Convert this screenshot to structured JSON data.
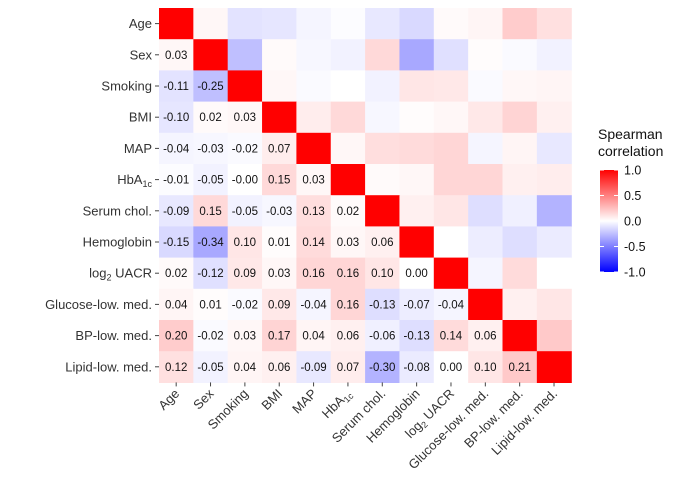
{
  "chart_data": {
    "type": "heatmap",
    "title": "",
    "xlabel": "",
    "ylabel": "",
    "variables": [
      "Age",
      "Sex",
      "Smoking",
      "BMI",
      "MAP",
      "HbA1c",
      "Serum chol.",
      "Hemoglobin",
      "log2 UACR",
      "Glucose-low. med.",
      "BP-low. med.",
      "Lipid-low. med."
    ],
    "row_labels": [
      {
        "main": "Age",
        "sub": "",
        "pre": ""
      },
      {
        "main": "Sex",
        "sub": "",
        "pre": ""
      },
      {
        "main": "Smoking",
        "sub": "",
        "pre": ""
      },
      {
        "main": "BMI",
        "sub": "",
        "pre": ""
      },
      {
        "main": "MAP",
        "sub": "",
        "pre": ""
      },
      {
        "main": "HbA",
        "sub": "1c",
        "pre": ""
      },
      {
        "main": "Serum chol.",
        "sub": "",
        "pre": ""
      },
      {
        "main": "Hemoglobin",
        "sub": "",
        "pre": ""
      },
      {
        "main": "UACR",
        "sub": "2",
        "pre": "log"
      },
      {
        "main": "Glucose-low. med.",
        "sub": "",
        "pre": ""
      },
      {
        "main": "BP-low. med.",
        "sub": "",
        "pre": ""
      },
      {
        "main": "Lipid-low. med.",
        "sub": "",
        "pre": ""
      }
    ],
    "lower_triangle_values": [
      [],
      [
        0.03
      ],
      [
        -0.11,
        -0.25
      ],
      [
        -0.1,
        0.02,
        0.03
      ],
      [
        -0.04,
        -0.03,
        -0.02,
        0.07
      ],
      [
        -0.01,
        -0.05,
        -0.0,
        0.15,
        0.03
      ],
      [
        -0.09,
        0.15,
        -0.05,
        -0.03,
        0.13,
        0.02
      ],
      [
        -0.15,
        -0.34,
        0.1,
        0.01,
        0.14,
        0.03,
        0.06
      ],
      [
        0.02,
        -0.12,
        0.09,
        0.03,
        0.16,
        0.16,
        0.1,
        0.0
      ],
      [
        0.04,
        0.01,
        -0.02,
        0.09,
        -0.04,
        0.16,
        -0.13,
        -0.07,
        -0.04
      ],
      [
        0.2,
        -0.02,
        0.03,
        0.17,
        0.04,
        0.06,
        -0.06,
        -0.13,
        0.14,
        0.06
      ],
      [
        0.12,
        -0.05,
        0.04,
        0.06,
        -0.09,
        0.07,
        -0.3,
        -0.08,
        0.0,
        0.1,
        0.21
      ]
    ],
    "lower_triangle_labels": [
      [],
      [
        "0.03"
      ],
      [
        "-0.11",
        "-0.25"
      ],
      [
        "-0.10",
        "0.02",
        "0.03"
      ],
      [
        "-0.04",
        "-0.03",
        "-0.02",
        "0.07"
      ],
      [
        "-0.01",
        "-0.05",
        "-0.00",
        "0.15",
        "0.03"
      ],
      [
        "-0.09",
        "0.15",
        "-0.05",
        "-0.03",
        "0.13",
        "0.02"
      ],
      [
        "-0.15",
        "-0.34",
        "0.10",
        "0.01",
        "0.14",
        "0.03",
        "0.06"
      ],
      [
        "0.02",
        "-0.12",
        "0.09",
        "0.03",
        "0.16",
        "0.16",
        "0.10",
        "0.00"
      ],
      [
        "0.04",
        "0.01",
        "-0.02",
        "0.09",
        "-0.04",
        "0.16",
        "-0.13",
        "-0.07",
        "-0.04"
      ],
      [
        "0.20",
        "-0.02",
        "0.03",
        "0.17",
        "0.04",
        "0.06",
        "-0.06",
        "-0.13",
        "0.14",
        "0.06"
      ],
      [
        "0.12",
        "-0.05",
        "0.04",
        "0.06",
        "-0.09",
        "0.07",
        "-0.30",
        "-0.08",
        "0.00",
        "0.10",
        "0.21"
      ]
    ],
    "diagonal_value": 1.0,
    "color_scale": {
      "min": -1.0,
      "mid": 0.0,
      "max": 1.0,
      "low_color": "#0000ff",
      "mid_color": "#ffffff",
      "high_color": "#ff0000"
    },
    "legend": {
      "title_lines": [
        "Spearman",
        "correlation"
      ],
      "ticks": [
        1.0,
        0.5,
        0.0,
        -0.5,
        -1.0
      ],
      "tick_labels": [
        "1.0",
        "0.5",
        "0.0",
        "-0.5",
        "-1.0"
      ],
      "placement": "right"
    }
  }
}
